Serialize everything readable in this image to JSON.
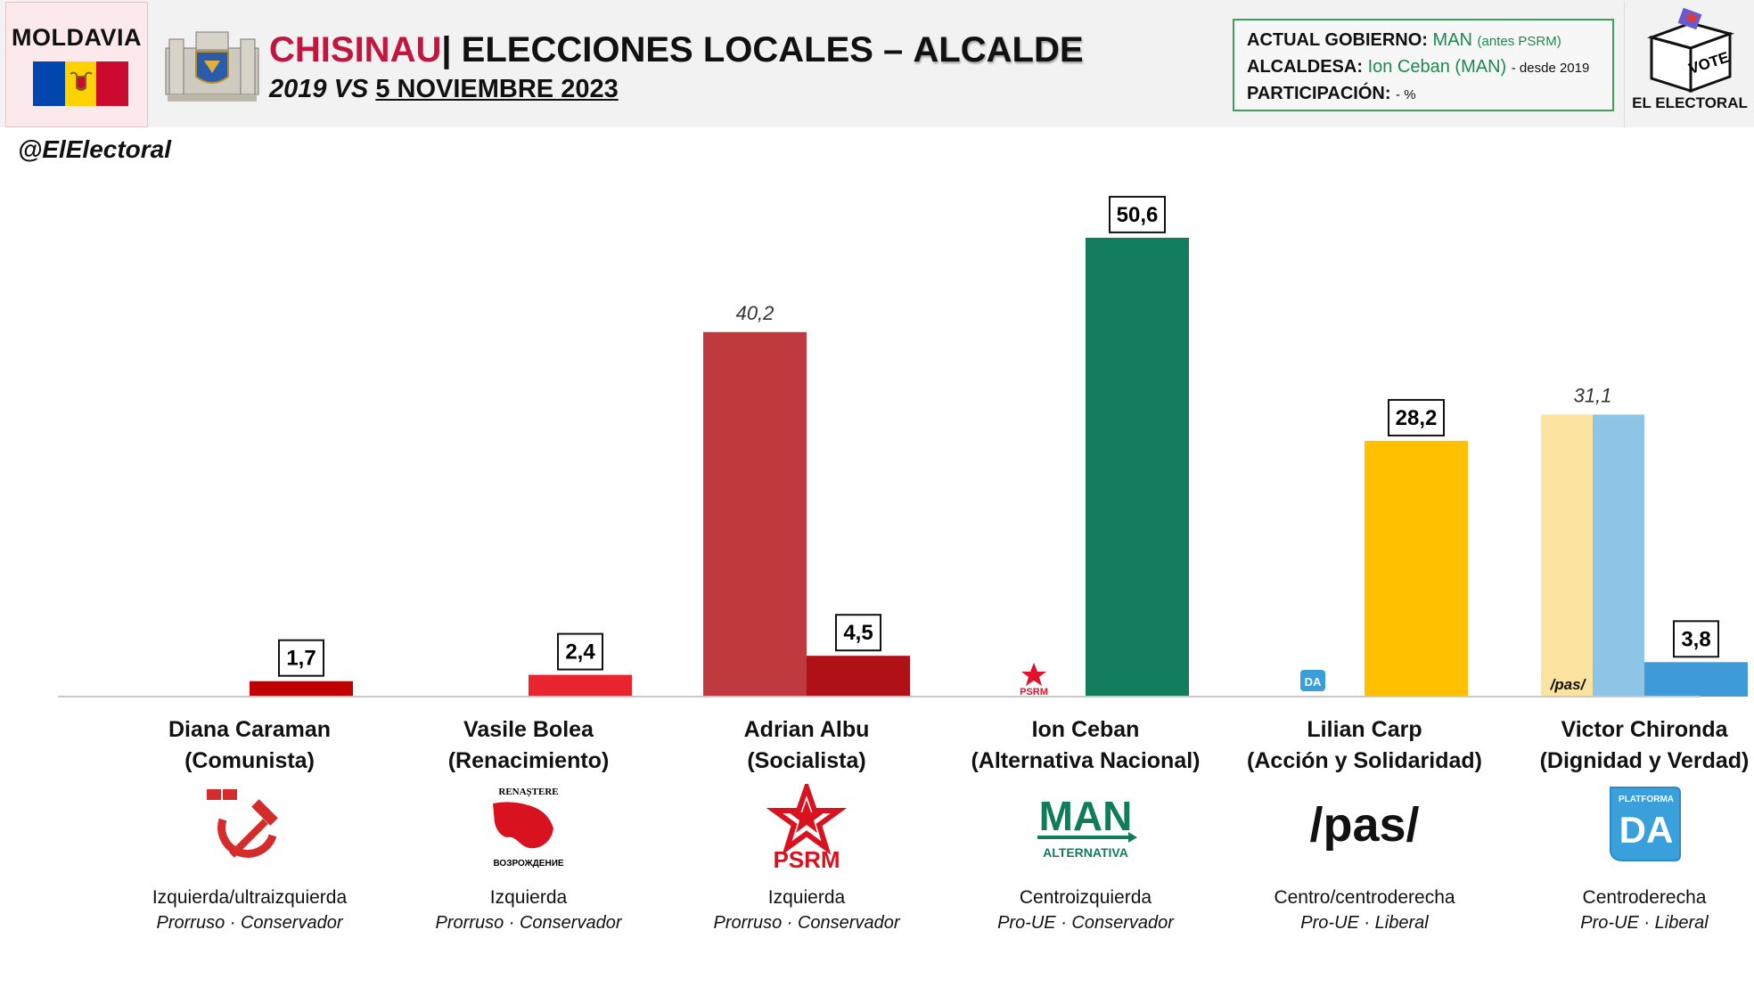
{
  "header": {
    "country": "MOLDAVIA",
    "city": "CHISINAU",
    "separator": "|",
    "title": " ELECCIONES LOCALES –",
    "office": "ALCALDE",
    "subtitle_years": "2019 VS",
    "subtitle_date": "5 NOVIEMBRE 2023",
    "flag_colors": [
      "#0046ae",
      "#ffd200",
      "#cc092f"
    ]
  },
  "info": {
    "government_label": "ACTUAL GOBIERNO:",
    "government_value": "MAN",
    "government_note": "(antes PSRM)",
    "mayor_label": "ALCALDESA:",
    "mayor_value": "Ion Ceban (MAN)",
    "mayor_note": "- desde 2019",
    "turnout_label": "PARTICIPACIÓN:",
    "turnout_value": "- %"
  },
  "brand": {
    "logo_text": "EL ELECTORAL",
    "vote_text": "VOTE",
    "handle": "@ElElectoral"
  },
  "chart_data": {
    "type": "bar",
    "ylim": [
      0,
      55
    ],
    "series_meaning": [
      "2019",
      "2023"
    ],
    "candidates": [
      {
        "name": "Diana Caraman",
        "party": "(Comunista)",
        "ideology": "Izquierda/ultraizquierda",
        "orientation": "Prorruso · Conservador",
        "value_2019": null,
        "value_2023": 1.7,
        "label_2023": "1,7",
        "color_2023": "#c00000",
        "logo": "hammer-sickle-icon"
      },
      {
        "name": "Vasile Bolea",
        "party": "(Renacimiento)",
        "ideology": "Izquierda",
        "orientation": "Prorruso · Conservador",
        "value_2019": null,
        "value_2023": 2.4,
        "label_2023": "2,4",
        "color_2023": "#e8242f",
        "logo": "renastere-logo-icon",
        "logo_top": "RENAȘTERE",
        "logo_bottom": "ВОЗРОЖДЕНИЕ"
      },
      {
        "name": "Adrian Albu",
        "party": "(Socialista)",
        "ideology": "Izquierda",
        "orientation": "Prorruso · Conservador",
        "value_2019": 40.2,
        "label_2019": "40,2",
        "color_2019": "#c0393f",
        "value_2023": 4.5,
        "label_2023": "4,5",
        "color_2023": "#b01116",
        "logo": "psrm-star-icon",
        "logo_text": "PSRM"
      },
      {
        "name": "Ion Ceban",
        "party": "(Alternativa Nacional)",
        "ideology": "Centroizquierda",
        "orientation": "Pro-UE · Conservador",
        "value_2019": null,
        "value_2023": 50.6,
        "label_2023": "50,6",
        "color_2023": "#137b5e",
        "bar_marker": "PSRM",
        "logo": "man-logo-icon",
        "logo_text": "MAN",
        "logo_sub": "ALTERNATIVA"
      },
      {
        "name": "Lilian Carp",
        "party": "(Acción y Solidaridad)",
        "ideology": "Centro/centroderecha",
        "orientation": "Pro-UE ·  Liberal",
        "value_2019": null,
        "value_2023": 28.2,
        "label_2023": "28,2",
        "color_2023": "#ffc000",
        "bar_marker": "DA",
        "logo": "pas-logo-icon",
        "logo_text": "/pas/"
      },
      {
        "name": "Victor Chironda",
        "party": "(Dignidad y Verdad)",
        "ideology": "Centroderecha",
        "orientation": "Pro-UE · Liberal",
        "value_2019": 31.1,
        "label_2019": "31,1",
        "color_2019_left": "#fce3a0",
        "color_2019_right": "#8ec5e6",
        "value_2023": 3.8,
        "label_2023": "3,8",
        "color_2023": "#3e9ad8",
        "bar_marker": "/pas/",
        "logo": "platforma-da-icon",
        "logo_text": "DA",
        "logo_sub": "PLATFORMA"
      }
    ]
  }
}
